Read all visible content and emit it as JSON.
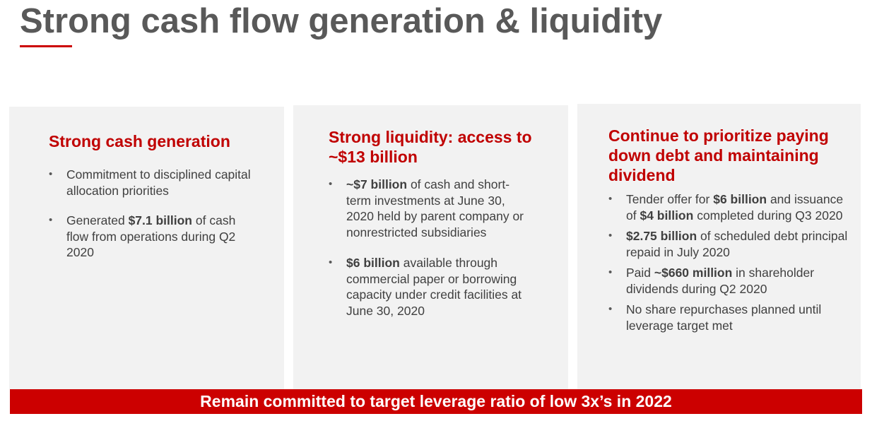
{
  "title": "Strong cash flow generation & liquidity",
  "panels": [
    {
      "heading": "Strong cash generation",
      "bullets": [
        {
          "parts": [
            {
              "text": "Commitment to disciplined capital allocation priorities",
              "bold": false
            }
          ]
        },
        {
          "parts": [
            {
              "text": "Generated ",
              "bold": false
            },
            {
              "text": "$7.1 billion",
              "bold": true
            },
            {
              "text": " of cash flow from operations during Q2 2020",
              "bold": false
            }
          ]
        }
      ]
    },
    {
      "heading": "Strong liquidity: access to ~$13 billion",
      "bullets": [
        {
          "parts": [
            {
              "text": "~$7 billion",
              "bold": true
            },
            {
              "text": " of cash and short-term investments at June 30, 2020 held by parent company or nonrestricted subsidiaries",
              "bold": false
            }
          ]
        },
        {
          "parts": [
            {
              "text": "$6 billion",
              "bold": true
            },
            {
              "text": " available through commercial paper or borrowing capacity under credit facilities at June 30, 2020",
              "bold": false
            }
          ]
        }
      ]
    },
    {
      "heading": "Continue to prioritize paying down debt and maintaining dividend",
      "bullets": [
        {
          "parts": [
            {
              "text": "Tender offer for ",
              "bold": false
            },
            {
              "text": "$6 billion",
              "bold": true
            },
            {
              "text": " and issuance of ",
              "bold": false
            },
            {
              "text": "$4 billion",
              "bold": true
            },
            {
              "text": " completed during Q3 2020",
              "bold": false
            }
          ]
        },
        {
          "parts": [
            {
              "text": "$2.75 billion",
              "bold": true
            },
            {
              "text": " of scheduled debt principal repaid in July 2020",
              "bold": false
            }
          ]
        },
        {
          "parts": [
            {
              "text": "Paid ",
              "bold": false
            },
            {
              "text": "~$660 million",
              "bold": true
            },
            {
              "text": " in shareholder dividends during Q2 2020",
              "bold": false
            }
          ]
        },
        {
          "parts": [
            {
              "text": "No share repurchases planned until leverage target met",
              "bold": false
            }
          ]
        }
      ]
    }
  ],
  "banner": "Remain committed to target leverage ratio of low 3x’s in 2022",
  "colors": {
    "accent": "#cc0000",
    "heading": "#c00000",
    "title": "#595959",
    "panel_bg": "#f2f2f2",
    "body_text": "#404040"
  }
}
